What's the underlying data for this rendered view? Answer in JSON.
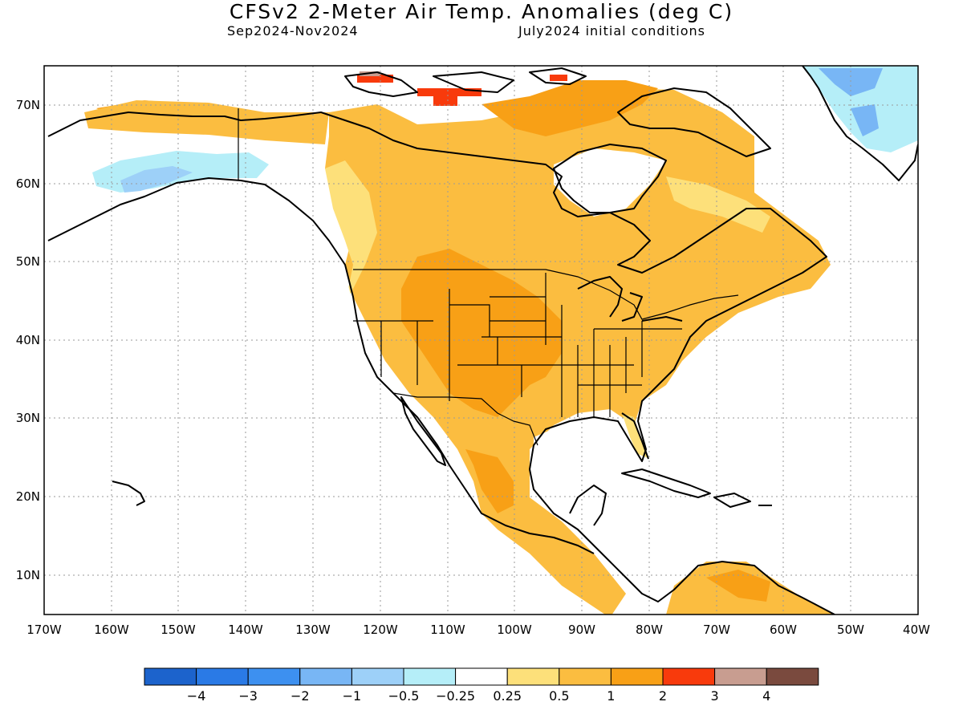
{
  "title": "CFSv2 2-Meter Air Temp. Anomalies (deg C)",
  "subtitle_left": "Sep2024-Nov2024",
  "subtitle_right": "July2024 initial conditions",
  "lat_labels": [
    "70N",
    "60N",
    "50N",
    "40N",
    "30N",
    "20N",
    "10N"
  ],
  "lon_labels": [
    "170W",
    "160W",
    "150W",
    "140W",
    "130W",
    "120W",
    "110W",
    "100W",
    "90W",
    "80W",
    "70W",
    "60W",
    "50W",
    "40W"
  ],
  "colorbar": {
    "colors": [
      "#1c63cc",
      "#2a7ae6",
      "#3d90f0",
      "#78b6f5",
      "#9dd0f8",
      "#b5eef8",
      "#ffffff",
      "#fde07a",
      "#fbbd40",
      "#f8a016",
      "#f83a0c",
      "#c89d90",
      "#7a4a3e"
    ],
    "labels": [
      "−4",
      "−3",
      "−2",
      "−1",
      "−0.5",
      "−0.25",
      "0.25",
      "0.5",
      "1",
      "2",
      "3",
      "4"
    ]
  },
  "palette": {
    "gold": "#fbbd40",
    "orange": "#f8a016",
    "yellow": "#fde07a",
    "lightblue": "#b5eef8",
    "blue": "#78b6f5",
    "red": "#f83a0c",
    "tan": "#c89d90"
  }
}
